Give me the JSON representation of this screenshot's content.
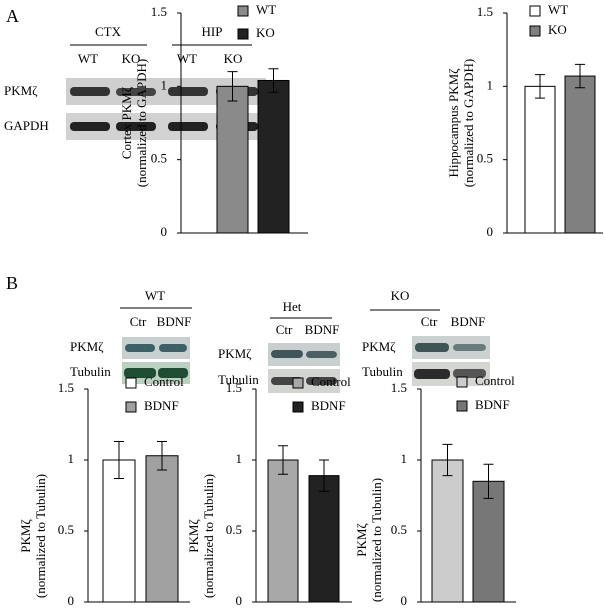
{
  "figure": {
    "panel_labels": [
      "A",
      "B"
    ],
    "blot_a": {
      "groups": [
        "CTX",
        "HIP"
      ],
      "lanes": [
        "WT",
        "KO",
        "WT",
        "KO"
      ],
      "rows": [
        "PKMζ",
        "GAPDH"
      ]
    },
    "blot_b": [
      {
        "group": "WT",
        "lanes": [
          "Ctr",
          "BDNF"
        ],
        "rows": [
          "PKMζ",
          "Tubulin"
        ]
      },
      {
        "group": "Het",
        "lanes": [
          "Ctr",
          "BDNF"
        ],
        "rows": [
          "PKMζ",
          "Tubulin"
        ]
      },
      {
        "group": "KO",
        "lanes": [
          "Ctr",
          "BDNF"
        ],
        "rows": [
          "PKMζ",
          "Tubulin"
        ]
      }
    ]
  },
  "chart_data": [
    {
      "type": "bar",
      "ylabel": [
        "Cortex PKMζ",
        "(normalized to GAPDH)"
      ],
      "ylim": [
        0,
        1.5
      ],
      "yticks": [
        0,
        0.5,
        1,
        1.5
      ],
      "series": [
        {
          "name": "WT",
          "color": "#8a8a8a",
          "values": [
            1.0
          ],
          "errors": [
            0.1
          ]
        },
        {
          "name": "KO",
          "color": "#222222",
          "values": [
            1.04
          ],
          "errors": [
            0.08
          ]
        }
      ]
    },
    {
      "type": "bar",
      "ylabel": [
        "Hippocampus PKMζ",
        "(normalized to GAPDH)"
      ],
      "ylim": [
        0,
        1.5
      ],
      "yticks": [
        0,
        0.5,
        1,
        1.5
      ],
      "series": [
        {
          "name": "WT",
          "color": "#ffffff",
          "values": [
            1.0
          ],
          "errors": [
            0.08
          ]
        },
        {
          "name": "KO",
          "color": "#808080",
          "values": [
            1.07
          ],
          "errors": [
            0.08
          ]
        }
      ]
    },
    {
      "type": "bar",
      "ylabel": [
        "PKMζ",
        "(normalized to Tubulin)"
      ],
      "ylim": [
        0,
        1.5
      ],
      "yticks": [
        0,
        0.5,
        1,
        1.5
      ],
      "series": [
        {
          "name": "Control",
          "color": "#ffffff",
          "values": [
            1.0
          ],
          "errors": [
            0.13
          ]
        },
        {
          "name": "BDNF",
          "color": "#a0a0a0",
          "values": [
            1.03
          ],
          "errors": [
            0.1
          ]
        }
      ]
    },
    {
      "type": "bar",
      "ylabel": [
        "PKMζ",
        "(normalized to Tubulin)"
      ],
      "ylim": [
        0,
        1.5
      ],
      "yticks": [
        0,
        0.5,
        1,
        1.5
      ],
      "series": [
        {
          "name": "Control",
          "color": "#a8a8a8",
          "values": [
            1.0
          ],
          "errors": [
            0.1
          ]
        },
        {
          "name": "BDNF",
          "color": "#222222",
          "values": [
            0.89
          ],
          "errors": [
            0.11
          ]
        }
      ]
    },
    {
      "type": "bar",
      "ylabel": [
        "PKMζ",
        "(normalized to Tubulin)"
      ],
      "ylim": [
        0,
        1.5
      ],
      "yticks": [
        0,
        0.5,
        1,
        1.5
      ],
      "series": [
        {
          "name": "Control",
          "color": "#cccccc",
          "values": [
            1.0
          ],
          "errors": [
            0.11
          ]
        },
        {
          "name": "BDNF",
          "color": "#777777",
          "values": [
            0.85
          ],
          "errors": [
            0.12
          ]
        }
      ]
    }
  ]
}
